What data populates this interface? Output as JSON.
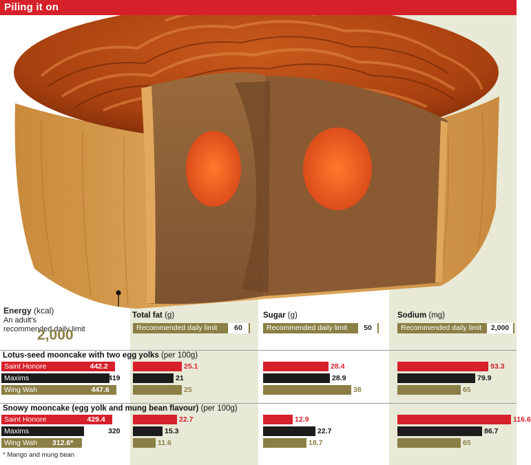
{
  "header": {
    "title": "Piling it on"
  },
  "colors": {
    "saint_honore": "#d6202a",
    "maxims": "#1c1c1c",
    "wing_wah": "#8b7f45",
    "panel": "#e8ead7"
  },
  "energy": {
    "title": "Energy",
    "unit": "(kcal)",
    "sub": "An adult's recommended daily limit",
    "limit": "2,000"
  },
  "metrics": [
    {
      "title": "Total fat",
      "unit": "(g)",
      "limit_label": "Recommended daily limit",
      "limit_value": "60"
    },
    {
      "title": "Sugar",
      "unit": "(g)",
      "limit_label": "Recommended daily limit",
      "limit_value": "50"
    },
    {
      "title": "Sodium",
      "unit": "(mg)",
      "limit_label": "Recommended daily limit",
      "limit_value": "2,000"
    }
  ],
  "sections": [
    {
      "title": "Lotus-seed mooncake with two egg yolks",
      "per": "(per 100g)"
    },
    {
      "title": "Snowy mooncake (egg yolk and mung bean flavour)",
      "per": "(per 100g)"
    }
  ],
  "footnote": "* Mango and mung bean",
  "chart_data": {
    "type": "bar",
    "title": "Piling it on",
    "brands": [
      "Saint Honore",
      "Maxims",
      "Wing Wah"
    ],
    "metrics": [
      "Energy (kcal)",
      "Total fat (g)",
      "Sugar (g)",
      "Sodium (mg)"
    ],
    "recommended_daily_limit": {
      "Energy (kcal)": 2000,
      "Total fat (g)": 60,
      "Sugar (g)": 50,
      "Sodium (mg)": 2000
    },
    "groups": [
      {
        "name": "Lotus-seed mooncake with two egg yolks (per 100g)",
        "series": [
          {
            "name": "Saint Honore",
            "values": [
              442.2,
              25.1,
              28.4,
              93.3
            ],
            "labels": [
              "442.2",
              "25.1",
              "28.4",
              "93.3"
            ]
          },
          {
            "name": "Maxims",
            "values": [
              419,
              21,
              28.9,
              79.9
            ],
            "labels": [
              "419",
              "21",
              "28.9",
              "79.9"
            ]
          },
          {
            "name": "Wing Wah",
            "values": [
              447.6,
              25,
              38,
              65
            ],
            "labels": [
              "447.6",
              "25",
              "38",
              "65"
            ]
          }
        ]
      },
      {
        "name": "Snowy mooncake (egg yolk and mung bean flavour) (per 100g)",
        "series": [
          {
            "name": "Saint Honore",
            "values": [
              429.4,
              22.7,
              12.9,
              116.6
            ],
            "labels": [
              "429.4",
              "22.7",
              "12.9",
              "116.6"
            ]
          },
          {
            "name": "Maxims",
            "values": [
              320,
              15.3,
              22.7,
              86.7
            ],
            "labels": [
              "320",
              "15.3",
              "22.7",
              "86.7"
            ]
          },
          {
            "name": "Wing Wah",
            "values": [
              312.6,
              11.6,
              18.7,
              65
            ],
            "labels": [
              "312.6*",
              "11.6",
              "18.7",
              "65"
            ]
          }
        ]
      }
    ]
  }
}
